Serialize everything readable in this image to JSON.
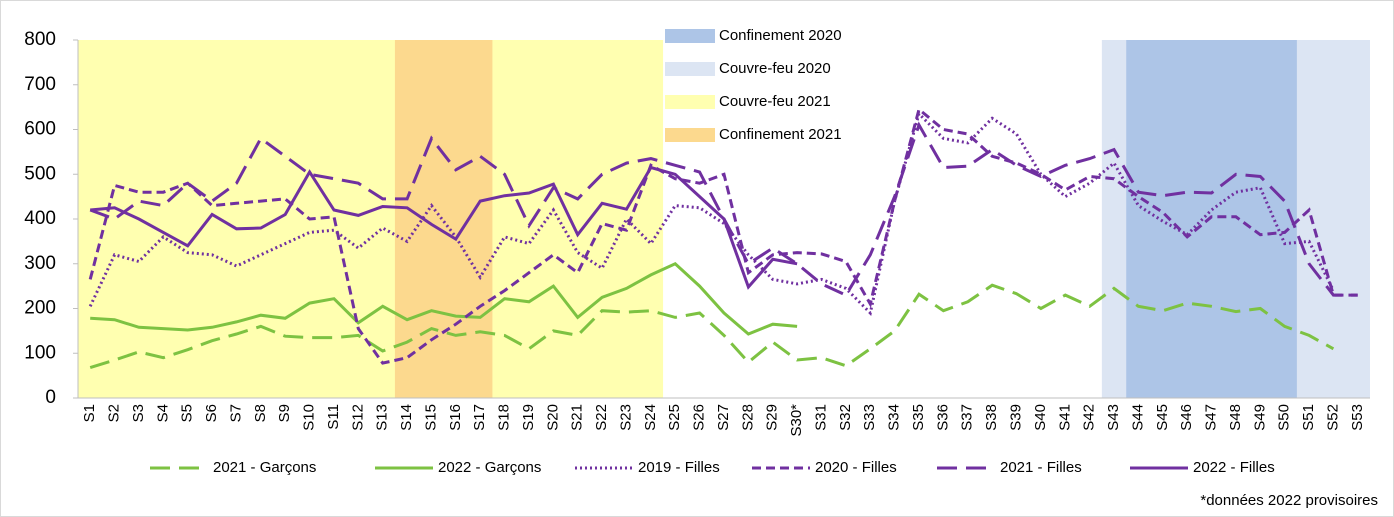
{
  "chart_data": {
    "type": "line",
    "categories": [
      "S1",
      "S2",
      "S3",
      "S4",
      "S5",
      "S6",
      "S7",
      "S8",
      "S9",
      "S10",
      "S11",
      "S12",
      "S13",
      "S14",
      "S15",
      "S16",
      "S17",
      "S18",
      "S19",
      "S20",
      "S21",
      "S22",
      "S23",
      "S24",
      "S25",
      "S26",
      "S27",
      "S28",
      "S29",
      "S30*",
      "S31",
      "S32",
      "S33",
      "S34",
      "S35",
      "S36",
      "S37",
      "S38",
      "S39",
      "S40",
      "S41",
      "S42",
      "S43",
      "S44",
      "S45",
      "S46",
      "S47",
      "S48",
      "S49",
      "S50",
      "S51",
      "S52",
      "S53"
    ],
    "ylim": [
      0,
      800
    ],
    "yticks": [
      0,
      100,
      200,
      300,
      400,
      500,
      600,
      700,
      800
    ],
    "periods": [
      {
        "name": "Couvre-feu 2020",
        "color": "#dce5f3",
        "ranges": [
          {
            "from": "S43",
            "to": "S53",
            "full_height": true
          }
        ]
      },
      {
        "name": "Confinement 2020",
        "color": "#adc5e7",
        "ranges": [
          {
            "from": "S12",
            "to": "S19",
            "full_height": false
          },
          {
            "from": "S44",
            "to": "S50",
            "full_height": true
          }
        ]
      },
      {
        "name": "Couvre-feu 2021",
        "color": "#ffffb0",
        "ranges": [
          {
            "from": "S1",
            "to": "S24",
            "full_height": true
          }
        ]
      },
      {
        "name": "Confinement 2021",
        "color": "#fcd98e",
        "ranges": [
          {
            "from": "S14",
            "to": "S17",
            "full_height": true
          }
        ]
      }
    ],
    "period_legend_order": [
      "Confinement 2020",
      "Couvre-feu 2020",
      "Couvre-feu 2021",
      "Confinement 2021"
    ],
    "series": [
      {
        "name": "2021 - Garçons",
        "color": "#7dc242",
        "style": "long-dash",
        "values": [
          68,
          85,
          103,
          90,
          108,
          128,
          143,
          160,
          138,
          135,
          135,
          140,
          105,
          125,
          155,
          140,
          148,
          140,
          110,
          150,
          140,
          195,
          192,
          195,
          180,
          190,
          140,
          80,
          125,
          85,
          90,
          72,
          110,
          150,
          232,
          195,
          215,
          252,
          233,
          200,
          230,
          205,
          245,
          205,
          195,
          212,
          205,
          193,
          200,
          160,
          140,
          110,
          null
        ]
      },
      {
        "name": "2022 - Garçons",
        "color": "#7dc242",
        "style": "solid",
        "values": [
          178,
          175,
          158,
          155,
          152,
          158,
          170,
          185,
          178,
          212,
          222,
          168,
          205,
          175,
          195,
          183,
          180,
          222,
          215,
          250,
          180,
          225,
          245,
          275,
          300,
          250,
          190,
          143,
          165,
          160,
          null,
          null,
          null,
          null,
          null,
          null,
          null,
          null,
          null,
          null,
          null,
          null,
          null,
          null,
          null,
          null,
          null,
          null,
          null,
          null,
          null,
          null,
          null
        ]
      },
      {
        "name": "2019 - Filles",
        "color": "#7030a0",
        "style": "dotted",
        "values": [
          205,
          320,
          305,
          360,
          325,
          320,
          295,
          320,
          345,
          370,
          375,
          335,
          380,
          350,
          430,
          360,
          270,
          360,
          345,
          420,
          325,
          290,
          400,
          345,
          430,
          425,
          390,
          320,
          265,
          255,
          265,
          245,
          190,
          440,
          635,
          580,
          570,
          625,
          590,
          500,
          450,
          480,
          525,
          430,
          395,
          365,
          420,
          460,
          470,
          345,
          350,
          240,
          null
        ]
      },
      {
        "name": "2020 - Filles",
        "color": "#7030a0",
        "style": "dash",
        "values": [
          265,
          475,
          460,
          460,
          480,
          430,
          435,
          440,
          445,
          400,
          405,
          155,
          78,
          90,
          130,
          165,
          205,
          240,
          280,
          320,
          280,
          390,
          375,
          520,
          490,
          480,
          500,
          280,
          320,
          325,
          322,
          305,
          210,
          440,
          645,
          600,
          590,
          540,
          525,
          500,
          465,
          495,
          490,
          450,
          415,
          360,
          405,
          405,
          365,
          370,
          420,
          230,
          230
        ]
      },
      {
        "name": "2021 - Filles",
        "color": "#7030a0",
        "style": "long-dash",
        "values": [
          420,
          400,
          440,
          430,
          480,
          440,
          480,
          580,
          540,
          500,
          490,
          480,
          445,
          445,
          580,
          510,
          540,
          500,
          385,
          470,
          445,
          500,
          525,
          535,
          520,
          505,
          400,
          300,
          335,
          300,
          255,
          230,
          320,
          450,
          610,
          515,
          518,
          555,
          520,
          495,
          520,
          535,
          555,
          460,
          452,
          460,
          458,
          500,
          495,
          440,
          300,
          230,
          230
        ]
      },
      {
        "name": "2022 - Filles",
        "color": "#7030a0",
        "style": "solid",
        "values": [
          420,
          425,
          400,
          370,
          340,
          410,
          378,
          380,
          410,
          505,
          420,
          408,
          428,
          425,
          388,
          355,
          440,
          452,
          458,
          478,
          365,
          435,
          422,
          515,
          500,
          450,
          400,
          248,
          310,
          300,
          null,
          null,
          null,
          null,
          null,
          null,
          null,
          null,
          null,
          null,
          null,
          null,
          null,
          null,
          null,
          null,
          null,
          null,
          null,
          null,
          null,
          null,
          null
        ]
      }
    ],
    "footnote": "*données 2022 provisoires"
  }
}
